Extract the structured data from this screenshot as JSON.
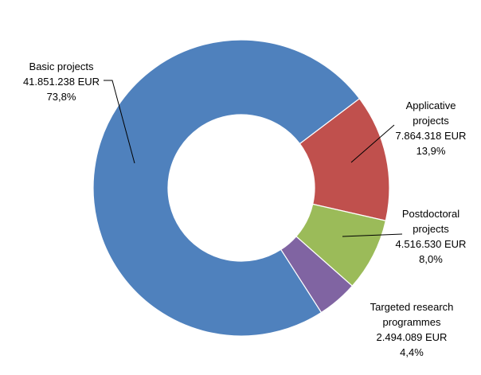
{
  "chart_data": {
    "type": "pie",
    "variant": "doughnut",
    "title": "",
    "start_angle_deg": 52.9,
    "direction": "clockwise",
    "legend": "none",
    "slices": [
      {
        "category_lines": [
          "Applicative",
          "projects"
        ],
        "value": 7864318,
        "value_label": "7.864.318 EUR",
        "percent": 13.9,
        "percent_label": "13,9%",
        "color": "#c0504d"
      },
      {
        "category_lines": [
          "Postdoctoral",
          "projects"
        ],
        "value": 4516530,
        "value_label": "4.516.530 EUR",
        "percent": 8.0,
        "percent_label": "8,0%",
        "color": "#9bbb59"
      },
      {
        "category_lines": [
          "Targeted research",
          "programmes"
        ],
        "value": 2494089,
        "value_label": "2.494.089 EUR",
        "percent": 4.4,
        "percent_label": "4,4%",
        "color": "#8064a2"
      },
      {
        "category_lines": [
          "Basic projects"
        ],
        "value": 41851238,
        "value_label": "41.851.238 EUR",
        "percent": 73.8,
        "percent_label": "73,8%",
        "color": "#4f81bd"
      }
    ]
  }
}
